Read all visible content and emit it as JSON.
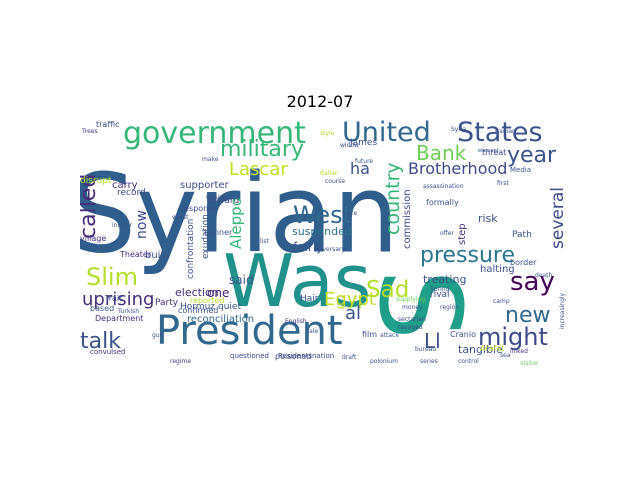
{
  "title": "2012-07",
  "words": [
    {
      "text": "Syrian",
      "color": "#2f5e8c"
    },
    {
      "text": "Was",
      "color": "#21918c"
    },
    {
      "text": "S",
      "color": "#1f9e89"
    },
    {
      "text": "President",
      "color": "#31688e"
    },
    {
      "text": "government",
      "color": "#35b779"
    },
    {
      "text": "United",
      "color": "#31688e"
    },
    {
      "text": "States",
      "color": "#3b528b"
    },
    {
      "text": "military",
      "color": "#35b779"
    },
    {
      "text": "Bank",
      "color": "#6ece58"
    },
    {
      "text": "West",
      "color": "#31688e"
    },
    {
      "text": "Slim",
      "color": "#b5de2b"
    },
    {
      "text": "pressure",
      "color": "#2a788e"
    },
    {
      "text": "say",
      "color": "#440154"
    },
    {
      "text": "Sad",
      "color": "#b5de2b"
    },
    {
      "text": "Egypt",
      "color": "#c2df23"
    },
    {
      "text": "new",
      "color": "#31688e"
    },
    {
      "text": "might",
      "color": "#3e4a89"
    },
    {
      "text": "talk",
      "color": "#3b528b"
    },
    {
      "text": "uprising",
      "color": "#472d7b"
    },
    {
      "text": "called",
      "color": "#472d7b"
    },
    {
      "text": "Lascar",
      "color": "#c2df23"
    },
    {
      "text": "year",
      "color": "#3b528b"
    },
    {
      "text": "Brotherhood",
      "color": "#3e4a89"
    },
    {
      "text": "country",
      "color": "#35b779"
    },
    {
      "text": "several",
      "color": "#3e4a89"
    },
    {
      "text": "Aleppo",
      "color": "#35b779"
    },
    {
      "text": "al",
      "color": "#3b528b"
    },
    {
      "text": "Ll",
      "color": "#3b528b"
    },
    {
      "text": "ha",
      "color": "#3b528b"
    },
    {
      "text": "now",
      "color": "#3e4a89"
    },
    {
      "text": "one",
      "color": "#482173"
    },
    {
      "text": "said",
      "color": "#3b528b"
    },
    {
      "text": "fairly",
      "color": "#3b528b"
    },
    {
      "text": "suspended",
      "color": "#2c728e"
    },
    {
      "text": "treating",
      "color": "#3b528b"
    },
    {
      "text": "tangible",
      "color": "#3b528b"
    },
    {
      "text": "halting",
      "color": "#3b528b"
    },
    {
      "text": "risk",
      "color": "#3b528b"
    },
    {
      "text": "commission",
      "color": "#3e4a89"
    },
    {
      "text": "step",
      "color": "#46327e"
    },
    {
      "text": "Hair",
      "color": "#3b528b"
    },
    {
      "text": "reconciliation",
      "color": "#31688e"
    },
    {
      "text": "election",
      "color": "#46327e"
    },
    {
      "text": "Party",
      "color": "#46327e"
    },
    {
      "text": "Hormuz",
      "color": "#3b528b"
    },
    {
      "text": "confrontation",
      "color": "#3b528b"
    },
    {
      "text": "exudation",
      "color": "#3b528b"
    },
    {
      "text": "build",
      "color": "#3b528b"
    },
    {
      "text": "Theater",
      "color": "#46327e"
    },
    {
      "text": "carry",
      "color": "#46327e"
    },
    {
      "text": "supporter",
      "color": "#3e4a89"
    },
    {
      "text": "record",
      "color": "#3e4a89"
    },
    {
      "text": "disrupt",
      "color": "#b5de2b"
    },
    {
      "text": "traffic",
      "color": "#3e4a89"
    },
    {
      "text": "toward",
      "color": "#3e4a89"
    },
    {
      "text": "response",
      "color": "#3e4a89"
    },
    {
      "text": "banner",
      "color": "#3b528b"
    },
    {
      "text": "Trait",
      "color": "#3b528b"
    },
    {
      "text": "based",
      "color": "#3b528b"
    },
    {
      "text": "Department",
      "color": "#46327e"
    },
    {
      "text": "quiet",
      "color": "#3b528b"
    },
    {
      "text": "confirmed",
      "color": "#3b528b"
    },
    {
      "text": "James",
      "color": "#3b528b"
    },
    {
      "text": "film",
      "color": "#3b528b"
    },
    {
      "text": "rival",
      "color": "#3b528b"
    },
    {
      "text": "formally",
      "color": "#3b528b"
    },
    {
      "text": "threat",
      "color": "#3e4a89"
    },
    {
      "text": "Path",
      "color": "#3b528b"
    },
    {
      "text": "border",
      "color": "#3b528b"
    },
    {
      "text": "village",
      "color": "#46327e"
    },
    {
      "text": "Arafat",
      "color": "#c2df23"
    },
    {
      "text": "convulsed",
      "color": "#46327e"
    },
    {
      "text": "poisoned",
      "color": "#3e4a89"
    },
    {
      "text": "questioned",
      "color": "#3e4a89"
    },
    {
      "text": "Residentsnation",
      "color": "#3e4a89"
    },
    {
      "text": "series",
      "color": "#3e4a89"
    },
    {
      "text": "bureau",
      "color": "#3b528b"
    },
    {
      "text": "polonium",
      "color": "#3b528b"
    },
    {
      "text": "Media",
      "color": "#3b528b"
    },
    {
      "text": "sea",
      "color": "#3b528b"
    },
    {
      "text": "linked",
      "color": "#46327e"
    },
    {
      "text": "visitor",
      "color": "#6ece58"
    },
    {
      "text": "widow",
      "color": "#3b528b"
    },
    {
      "text": "future",
      "color": "#3b528b"
    },
    {
      "text": "Cranio",
      "color": "#3b528b"
    },
    {
      "text": "supplying",
      "color": "#6ece58"
    },
    {
      "text": "sectarian",
      "color": "#3e4a89"
    },
    {
      "text": "ravaged",
      "color": "#3e4a89"
    },
    {
      "text": "Trees",
      "color": "#46327e"
    },
    {
      "text": "insider",
      "color": "#3b528b"
    },
    {
      "text": "Turkish",
      "color": "#3b528b"
    },
    {
      "text": "English",
      "color": "#46327e"
    },
    {
      "text": "Iranian",
      "color": "#3b528b"
    },
    {
      "text": "camp",
      "color": "#3b528b"
    },
    {
      "text": "increasingly",
      "color": "#3b528b"
    },
    {
      "text": "regime",
      "color": "#46327e"
    },
    {
      "text": "style",
      "color": "#b5de2b"
    },
    {
      "text": "Syria",
      "color": "#3b528b"
    },
    {
      "text": "first",
      "color": "#3b528b"
    },
    {
      "text": "Spring",
      "color": "#3b528b"
    },
    {
      "text": "element",
      "color": "#3b528b"
    },
    {
      "text": "offer",
      "color": "#3b528b"
    },
    {
      "text": "money",
      "color": "#3b528b"
    },
    {
      "text": "region",
      "color": "#3b528b"
    },
    {
      "text": "death",
      "color": "#3b528b"
    },
    {
      "text": "draft",
      "color": "#3b528b"
    },
    {
      "text": "attack",
      "color": "#3b528b"
    },
    {
      "text": "control",
      "color": "#3b528b"
    },
    {
      "text": "worst",
      "color": "#3b528b"
    },
    {
      "text": "list",
      "color": "#3b528b"
    },
    {
      "text": "Italian",
      "color": "#b5de2b"
    },
    {
      "text": "course",
      "color": "#3b528b"
    },
    {
      "text": "make",
      "color": "#3b528b"
    },
    {
      "text": "mining",
      "color": "#3b528b"
    },
    {
      "text": "force",
      "color": "#3b528b"
    },
    {
      "text": "assassination",
      "color": "#3b528b"
    },
    {
      "text": "adversary",
      "color": "#3b528b"
    },
    {
      "text": "sale",
      "color": "#3b528b"
    },
    {
      "text": "gulf",
      "color": "#3b528b"
    },
    {
      "text": "reported",
      "color": "#b5de2b"
    }
  ]
}
